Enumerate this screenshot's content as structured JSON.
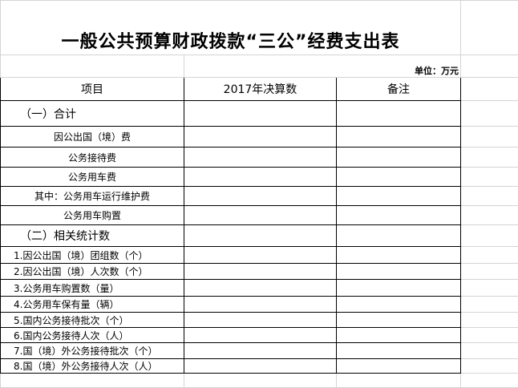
{
  "title": "一般公共预算财政拨款“三公”经费支出表",
  "unit": "单位：万元",
  "headers": {
    "item": "项目",
    "amount": "2017年决算数",
    "note": "备注"
  },
  "rows": [
    {
      "label": "（一）合计",
      "type": "group"
    },
    {
      "label": "因公出国（境）费",
      "type": "sub"
    },
    {
      "label": "公务接待费",
      "type": "sub"
    },
    {
      "label": "公务用车费",
      "type": "sub"
    },
    {
      "label": "其中：公务用车运行维护费",
      "type": "sub"
    },
    {
      "label": "公务用车购置",
      "type": "sub"
    },
    {
      "label": "（二）相关统计数",
      "type": "group"
    },
    {
      "label": "1.因公出国（境）团组数（个）",
      "type": "num"
    },
    {
      "label": "2.因公出国（境）人次数（个）",
      "type": "num"
    },
    {
      "label": "3.公务用车购置数（量）",
      "type": "num"
    },
    {
      "label": "4.公务用车保有量（辆）",
      "type": "num"
    },
    {
      "label": "5.国内公务接待批次（个）",
      "type": "num"
    },
    {
      "label": "6.国内公务接待人次（人）",
      "type": "num"
    },
    {
      "label": "7.国（境）外公务接待批次（个）",
      "type": "num"
    },
    {
      "label": "8.国（境）外公务接待人次（人）",
      "type": "num"
    }
  ]
}
